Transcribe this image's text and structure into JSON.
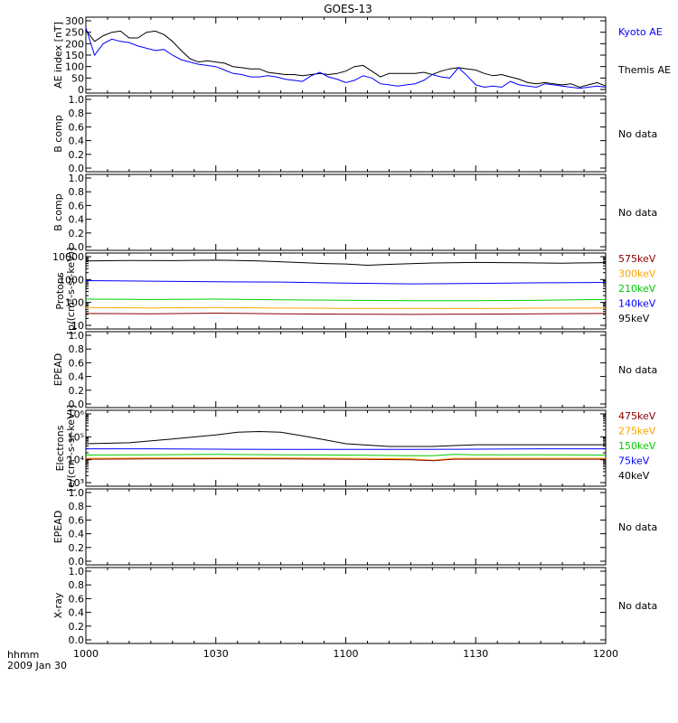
{
  "title": "GOES-13",
  "footer": {
    "line1": "hhmm",
    "line2": "2009 Jan 30"
  },
  "time_axis": {
    "range_minutes": [
      0,
      120
    ],
    "ticks": [
      {
        "t": 0,
        "label": "1000"
      },
      {
        "t": 30,
        "label": "1030"
      },
      {
        "t": 60,
        "label": "1100"
      },
      {
        "t": 90,
        "label": "1130"
      },
      {
        "t": 120,
        "label": "1200"
      }
    ]
  },
  "chart_data": [
    {
      "type": "line",
      "ylabel": "AE index [nT]",
      "ylim": [
        0,
        300
      ],
      "yscale": "linear",
      "yticks": [
        "0",
        "50",
        "100",
        "150",
        "200",
        "250",
        "300"
      ],
      "ytick_values": [
        0,
        50,
        100,
        150,
        200,
        250,
        300
      ],
      "legend": [
        {
          "label": "Kyoto AE",
          "color": "#0000ff"
        },
        {
          "label": "Themis AE",
          "color": "#000000"
        }
      ],
      "series": [
        {
          "name": "Themis AE",
          "color": "#000000",
          "x": [
            0,
            2,
            4,
            6,
            8,
            10,
            12,
            14,
            16,
            18,
            20,
            22,
            24,
            26,
            28,
            30,
            32,
            34,
            36,
            38,
            40,
            42,
            44,
            46,
            48,
            50,
            52,
            54,
            56,
            58,
            60,
            62,
            64,
            66,
            68,
            70,
            72,
            74,
            76,
            78,
            80,
            82,
            84,
            86,
            88,
            90,
            92,
            94,
            96,
            98,
            100,
            102,
            104,
            106,
            108,
            110,
            112,
            114,
            116,
            118,
            120
          ],
          "y": [
            260,
            210,
            235,
            250,
            255,
            225,
            225,
            250,
            255,
            240,
            210,
            170,
            135,
            120,
            125,
            120,
            115,
            100,
            95,
            90,
            90,
            75,
            70,
            65,
            65,
            60,
            65,
            70,
            65,
            70,
            80,
            100,
            105,
            80,
            55,
            70,
            70,
            70,
            70,
            75,
            65,
            80,
            90,
            95,
            90,
            85,
            70,
            60,
            65,
            55,
            45,
            30,
            25,
            30,
            25,
            20,
            25,
            10,
            20,
            30,
            15
          ]
        },
        {
          "name": "Kyoto AE",
          "color": "#0000ff",
          "x": [
            0,
            2,
            4,
            6,
            8,
            10,
            12,
            14,
            16,
            18,
            20,
            22,
            24,
            26,
            28,
            30,
            32,
            34,
            36,
            38,
            40,
            42,
            44,
            46,
            48,
            50,
            52,
            54,
            56,
            58,
            60,
            62,
            64,
            66,
            68,
            70,
            72,
            74,
            76,
            78,
            80,
            82,
            84,
            86,
            88,
            90,
            92,
            94,
            96,
            98,
            100,
            102,
            104,
            106,
            108,
            110,
            112,
            114,
            116,
            118,
            120
          ],
          "y": [
            270,
            150,
            200,
            220,
            210,
            205,
            190,
            180,
            170,
            175,
            150,
            130,
            120,
            110,
            105,
            100,
            85,
            70,
            65,
            55,
            55,
            60,
            55,
            45,
            40,
            35,
            60,
            75,
            55,
            45,
            30,
            40,
            60,
            50,
            25,
            20,
            15,
            20,
            25,
            40,
            65,
            55,
            50,
            95,
            60,
            20,
            10,
            15,
            10,
            35,
            20,
            15,
            10,
            25,
            20,
            15,
            10,
            5,
            10,
            15,
            10
          ]
        }
      ]
    },
    {
      "type": "line",
      "ylabel": "B comp",
      "ylim": [
        0,
        1
      ],
      "yscale": "linear",
      "yticks": [
        "0.0",
        "0.2",
        "0.4",
        "0.6",
        "0.8",
        "1.0"
      ],
      "ytick_values": [
        0,
        0.2,
        0.4,
        0.6,
        0.8,
        1.0
      ],
      "nodata_text": "No data",
      "series": []
    },
    {
      "type": "line",
      "ylabel": "B comp",
      "ylim": [
        0,
        1
      ],
      "yscale": "linear",
      "yticks": [
        "0.0",
        "0.2",
        "0.4",
        "0.6",
        "0.8",
        "1.0"
      ],
      "ytick_values": [
        0,
        0.2,
        0.4,
        0.6,
        0.8,
        1.0
      ],
      "nodata_text": "No data",
      "series": []
    },
    {
      "type": "line",
      "ylabel": "Protons",
      "ylabel2": "[p/(cm²-s-sr-keV)]",
      "ylim": [
        10,
        10000
      ],
      "yscale": "log",
      "yticks": [
        "10",
        "100",
        "1000",
        "10000"
      ],
      "ytick_values": [
        10,
        100,
        1000,
        10000
      ],
      "legend": [
        {
          "label": "575keV",
          "color": "#8b0000"
        },
        {
          "label": "300keV",
          "color": "#ffa500"
        },
        {
          "label": "210keV",
          "color": "#00cc00"
        },
        {
          "label": "140keV",
          "color": "#0000ff"
        },
        {
          "label": "95keV",
          "color": "#000000"
        }
      ],
      "series": [
        {
          "name": "95keV",
          "color": "#000000",
          "x": [
            0,
            10,
            20,
            30,
            40,
            50,
            55,
            60,
            65,
            70,
            80,
            90,
            100,
            110,
            120
          ],
          "y": [
            6500,
            6800,
            6700,
            7000,
            6500,
            5500,
            5000,
            4800,
            4200,
            4600,
            5300,
            5600,
            5400,
            5200,
            5500
          ]
        },
        {
          "name": "140keV",
          "color": "#0000ff",
          "x": [
            0,
            15,
            30,
            45,
            60,
            75,
            90,
            105,
            120
          ],
          "y": [
            900,
            850,
            800,
            780,
            700,
            650,
            680,
            720,
            750
          ]
        },
        {
          "name": "210keV",
          "color": "#00cc00",
          "x": [
            0,
            15,
            30,
            45,
            60,
            75,
            90,
            105,
            120
          ],
          "y": [
            140,
            135,
            140,
            130,
            125,
            120,
            120,
            125,
            135
          ]
        },
        {
          "name": "300keV",
          "color": "#ffa500",
          "x": [
            0,
            15,
            30,
            45,
            60,
            75,
            90,
            105,
            120
          ],
          "y": [
            60,
            58,
            60,
            57,
            55,
            55,
            54,
            56,
            58
          ]
        },
        {
          "name": "575keV",
          "color": "#8b0000",
          "x": [
            0,
            15,
            30,
            45,
            60,
            75,
            90,
            105,
            120
          ],
          "y": [
            33,
            32,
            34,
            32,
            31,
            30,
            31,
            32,
            33
          ]
        }
      ]
    },
    {
      "type": "line",
      "ylabel": "EPEAD",
      "ylim": [
        0,
        1
      ],
      "yscale": "linear",
      "yticks": [
        "0.0",
        "0.2",
        "0.4",
        "0.6",
        "0.8",
        "1.0"
      ],
      "ytick_values": [
        0,
        0.2,
        0.4,
        0.6,
        0.8,
        1.0
      ],
      "nodata_text": "No data",
      "series": []
    },
    {
      "type": "line",
      "ylabel": "Electrons",
      "ylabel2": "[e/(cm²-s-sr-keV)]",
      "ylim": [
        1000,
        1000000
      ],
      "yscale": "log",
      "yticks": [
        "10³",
        "10⁴",
        "10⁵",
        "10⁶"
      ],
      "ytick_values": [
        1000,
        10000,
        100000,
        1000000
      ],
      "legend": [
        {
          "label": "475keV",
          "color": "#8b0000"
        },
        {
          "label": "275keV",
          "color": "#ffa500"
        },
        {
          "label": "150keV",
          "color": "#00cc00"
        },
        {
          "label": "75keV",
          "color": "#0000ff"
        },
        {
          "label": "40keV",
          "color": "#000000"
        }
      ],
      "series": [
        {
          "name": "40keV",
          "color": "#000000",
          "x": [
            0,
            10,
            20,
            30,
            35,
            40,
            45,
            50,
            55,
            60,
            70,
            80,
            90,
            100,
            110,
            120
          ],
          "y": [
            50000,
            55000,
            80000,
            120000,
            160000,
            170000,
            160000,
            110000,
            75000,
            50000,
            38000,
            38000,
            45000,
            45000,
            45000,
            45000
          ]
        },
        {
          "name": "75keV",
          "color": "#0000ff",
          "x": [
            0,
            15,
            30,
            45,
            60,
            75,
            90,
            105,
            120
          ],
          "y": [
            30000,
            30000,
            29000,
            28000,
            28000,
            28000,
            29000,
            30000,
            30000
          ]
        },
        {
          "name": "150keV",
          "color": "#00cc00",
          "x": [
            0,
            15,
            30,
            45,
            60,
            75,
            80,
            85,
            90,
            105,
            120
          ],
          "y": [
            16000,
            16500,
            17000,
            16500,
            16000,
            15000,
            15000,
            17000,
            16500,
            16500,
            16000
          ]
        },
        {
          "name": "275keV",
          "color": "#ffa500",
          "x": [
            0,
            15,
            30,
            45,
            60,
            75,
            80,
            85,
            90,
            105,
            120
          ],
          "y": [
            11500,
            11800,
            12000,
            11800,
            11500,
            11000,
            9500,
            11500,
            11500,
            11500,
            11500
          ]
        },
        {
          "name": "475keV",
          "color": "#8b0000",
          "x": [
            0,
            15,
            30,
            45,
            60,
            75,
            80,
            85,
            90,
            105,
            120
          ],
          "y": [
            10500,
            10800,
            11000,
            10800,
            10500,
            10000,
            9000,
            10500,
            10500,
            10500,
            10500
          ]
        }
      ]
    },
    {
      "type": "line",
      "ylabel": "EPEAD",
      "ylim": [
        0,
        1
      ],
      "yscale": "linear",
      "yticks": [
        "0.0",
        "0.2",
        "0.4",
        "0.6",
        "0.8",
        "1.0"
      ],
      "ytick_values": [
        0,
        0.2,
        0.4,
        0.6,
        0.8,
        1.0
      ],
      "nodata_text": "No data",
      "series": []
    },
    {
      "type": "line",
      "ylabel": "X-ray",
      "ylim": [
        0,
        1
      ],
      "yscale": "linear",
      "yticks": [
        "0.0",
        "0.2",
        "0.4",
        "0.6",
        "0.8",
        "1.0"
      ],
      "ytick_values": [
        0,
        0.2,
        0.4,
        0.6,
        0.8,
        1.0
      ],
      "nodata_text": "No data",
      "series": []
    }
  ]
}
